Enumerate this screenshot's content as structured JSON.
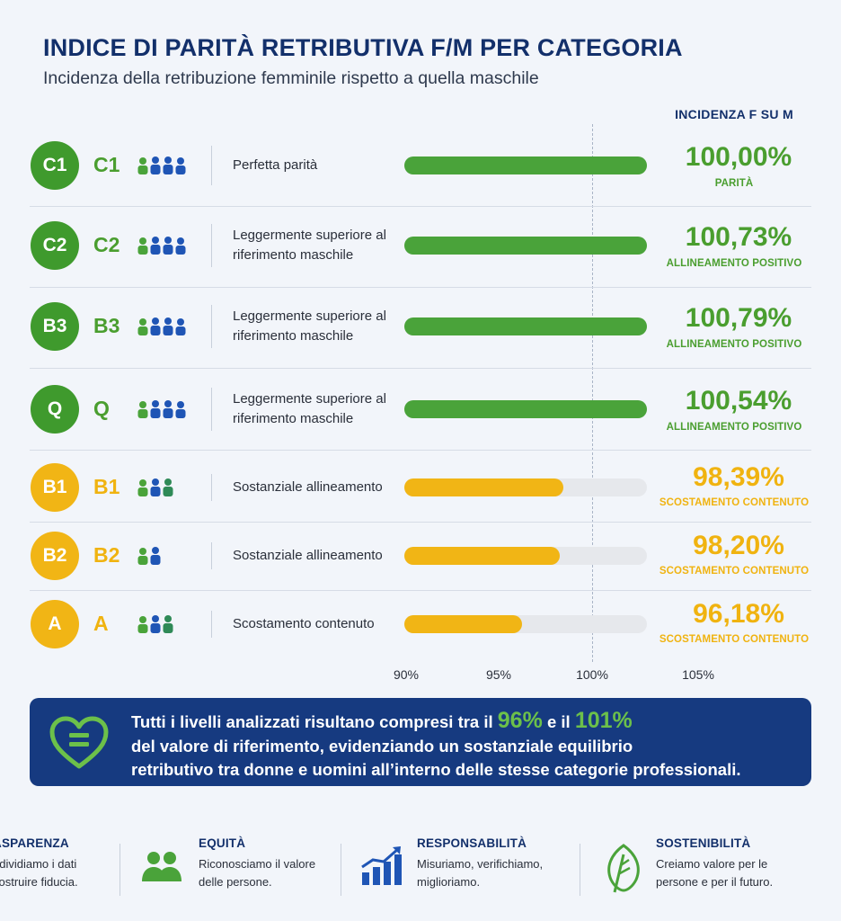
{
  "header": {
    "title": "INDICE DI PARITÀ RETRIBUTIVA F/M PER CATEGORIA",
    "subtitle": "Incidenza della retribuzione femminile rispetto a quella maschile",
    "column_label": "INCIDENZA F SU M"
  },
  "colors": {
    "green": "#3f9a2d",
    "green_text": "#4a9e2f",
    "yellow": "#f1b515",
    "yellow_text": "#f0b310",
    "navy": "#13306b",
    "banner": "#163a80",
    "track": "#e6e8ec"
  },
  "chart_data": {
    "type": "bar",
    "orientation": "horizontal",
    "xlim": [
      90,
      105
    ],
    "x_ticks": [
      "90%",
      "95%",
      "100%",
      "105%"
    ],
    "reference_value": 100,
    "categories": [
      "C1",
      "C2",
      "B3",
      "Q",
      "B1",
      "B2",
      "A"
    ],
    "values": [
      100.0,
      100.73,
      100.79,
      100.54,
      98.39,
      98.2,
      96.18
    ],
    "rows": [
      {
        "badge": "C1",
        "code": "C1",
        "people": 4,
        "tone": "green",
        "description": "Perfetta parità",
        "value": 100.0,
        "value_label": "100,00%",
        "status": "PARITÀ"
      },
      {
        "badge": "C2",
        "code": "C2",
        "people": 4,
        "tone": "green",
        "description": "Leggermente superiore al riferimento maschile",
        "value": 100.73,
        "value_label": "100,73%",
        "status": "ALLINEAMENTO POSITIVO"
      },
      {
        "badge": "B3",
        "code": "B3",
        "people": 4,
        "tone": "green",
        "description": "Leggermente superiore al riferimento maschile",
        "value": 100.79,
        "value_label": "100,79%",
        "status": "ALLINEAMENTO POSITIVO"
      },
      {
        "badge": "Q",
        "code": "Q",
        "people": 4,
        "tone": "green",
        "description": "Leggermente superiore al riferimento maschile",
        "value": 100.54,
        "value_label": "100,54%",
        "status": "ALLINEAMENTO POSITIVO"
      },
      {
        "badge": "B1",
        "code": "B1",
        "people": 3,
        "tone": "yellow",
        "description": "Sostanziale allineamento",
        "value": 98.39,
        "value_label": "98,39%",
        "status": "SCOSTAMENTO CONTENUTO"
      },
      {
        "badge": "B2",
        "code": "B2",
        "people": 2,
        "tone": "yellow",
        "description": "Sostanziale allineamento",
        "value": 98.2,
        "value_label": "98,20%",
        "status": "SCOSTAMENTO CONTENUTO"
      },
      {
        "badge": "A",
        "code": "A",
        "people": 3,
        "tone": "yellow",
        "description": "Scostamento contenuto",
        "value": 96.18,
        "value_label": "96,18%",
        "status": "SCOSTAMENTO CONTENUTO"
      }
    ]
  },
  "banner": {
    "line1_pre": "Tutti i livelli analizzati risultano compresi tra ",
    "line1_il1": "il ",
    "low": "96%",
    "line1_mid": " e il ",
    "high": "101%",
    "line2": "del valore di riferimento, evidenziando un sostanziale equilibrio",
    "line3": "retributivo tra donne e uomini all’interno delle stesse categorie professionali.",
    "icon": "heart-equals-icon"
  },
  "values": [
    {
      "heading": "ASPARENZA",
      "line1": "ndividiamo i dati",
      "line2": "costruire fiducia.",
      "icon": "none"
    },
    {
      "heading": "EQUITÀ",
      "line1": "Riconosciamo il valore",
      "line2": "delle persone.",
      "icon": "people-icon"
    },
    {
      "heading": "RESPONSABILITÀ",
      "line1": "Misuriamo, verifichiamo,",
      "line2": "miglioriamo.",
      "icon": "bar-chart-icon"
    },
    {
      "heading": "SOSTENIBILITÀ",
      "line1": "Creiamo valore per le",
      "line2": "persone e per il futuro.",
      "icon": "leaf-icon"
    }
  ]
}
